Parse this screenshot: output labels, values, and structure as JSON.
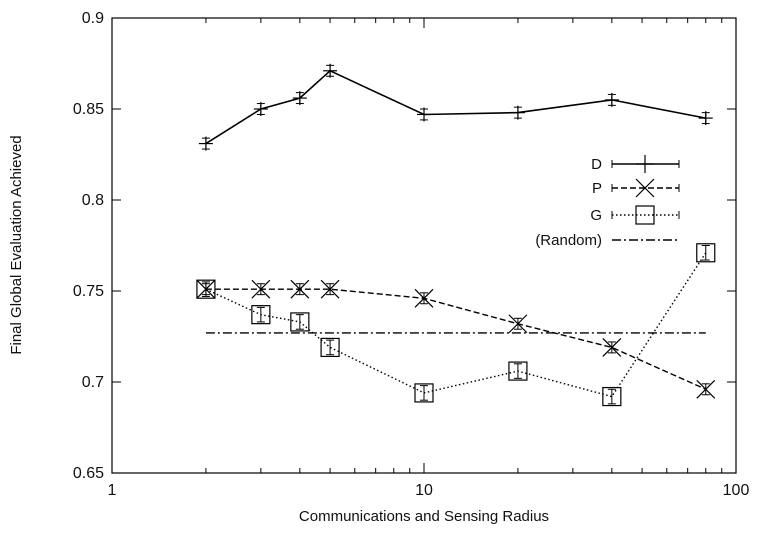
{
  "chart_data": {
    "type": "line",
    "title": "",
    "xlabel": "Communications and Sensing Radius",
    "ylabel": "Final Global Evaluation Achieved",
    "x_scale": "log",
    "xlim": [
      1,
      100
    ],
    "ylim": [
      0.65,
      0.9
    ],
    "x_ticks": [
      1,
      10,
      100
    ],
    "x_tick_labels": [
      "1",
      "10",
      "100"
    ],
    "y_ticks": [
      0.65,
      0.7,
      0.75,
      0.8,
      0.85,
      0.9
    ],
    "y_tick_labels": [
      "0.65",
      "0.7",
      "0.75",
      "0.8",
      "0.85",
      "0.9"
    ],
    "grid": false,
    "legend_position": "right",
    "series": [
      {
        "name": "D",
        "marker": "plus",
        "line_style": "solid",
        "color": "#000000",
        "x": [
          2,
          3,
          4,
          5,
          10,
          20,
          40,
          80
        ],
        "y": [
          0.831,
          0.85,
          0.856,
          0.871,
          0.847,
          0.848,
          0.855,
          0.845
        ],
        "error": [
          0.003,
          0.003,
          0.003,
          0.003,
          0.003,
          0.003,
          0.003,
          0.003
        ]
      },
      {
        "name": "P",
        "marker": "x",
        "line_style": "dashed",
        "color": "#000000",
        "x": [
          2,
          3,
          4,
          5,
          10,
          20,
          40,
          80
        ],
        "y": [
          0.751,
          0.751,
          0.751,
          0.751,
          0.746,
          0.732,
          0.719,
          0.696
        ],
        "error": [
          0.003,
          0.003,
          0.003,
          0.003,
          0.003,
          0.003,
          0.003,
          0.003
        ]
      },
      {
        "name": "G",
        "marker": "square",
        "line_style": "dotted",
        "color": "#000000",
        "x": [
          2,
          3,
          4,
          5,
          10,
          20,
          40,
          80
        ],
        "y": [
          0.751,
          0.737,
          0.733,
          0.719,
          0.694,
          0.706,
          0.692,
          0.771
        ],
        "error": [
          0.004,
          0.004,
          0.004,
          0.004,
          0.004,
          0.004,
          0.004,
          0.004
        ]
      },
      {
        "name": "(Random)",
        "marker": "none",
        "line_style": "dash-dot",
        "color": "#000000",
        "x": [
          2,
          80
        ],
        "y": [
          0.727,
          0.727
        ]
      }
    ]
  }
}
